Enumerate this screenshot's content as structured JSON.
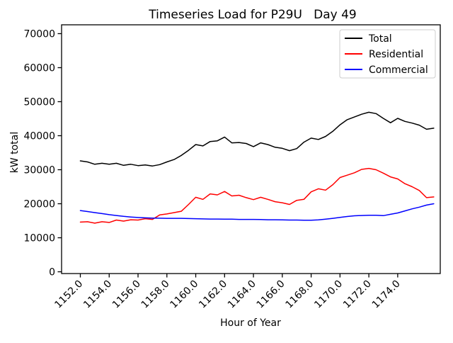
{
  "chart_data": {
    "type": "line",
    "title": "Timeseries Load for P29U   Day 49",
    "xlabel": "Hour of Year",
    "ylabel": "kW total",
    "grid": false,
    "xlim": [
      1150.7,
      1176.95
    ],
    "ylim": [
      -520,
      72600
    ],
    "x_ticks": {
      "values": [
        1152,
        1154,
        1156,
        1158,
        1160,
        1162,
        1164,
        1166,
        1168,
        1170,
        1172,
        1174
      ],
      "labels": [
        "1152.0",
        "1154.0",
        "1156.0",
        "1158.0",
        "1160.0",
        "1162.0",
        "1164.0",
        "1166.0",
        "1168.0",
        "1170.0",
        "1172.0",
        "1174.0"
      ],
      "rotation": -45
    },
    "y_ticks": {
      "values": [
        0,
        10000,
        20000,
        30000,
        40000,
        50000,
        60000,
        70000
      ],
      "labels": [
        "0",
        "10000",
        "20000",
        "30000",
        "40000",
        "50000",
        "60000",
        "70000"
      ]
    },
    "legend": {
      "position": "upper right",
      "entries": [
        "Total",
        "Residential",
        "Commercial"
      ]
    },
    "x": [
      1152.0,
      1152.5,
      1153.0,
      1153.5,
      1154.0,
      1154.5,
      1155.0,
      1155.5,
      1156.0,
      1156.5,
      1157.0,
      1157.5,
      1158.0,
      1158.5,
      1159.0,
      1159.5,
      1160.0,
      1160.5,
      1161.0,
      1161.5,
      1162.0,
      1162.5,
      1163.0,
      1163.5,
      1164.0,
      1164.5,
      1165.0,
      1165.5,
      1166.0,
      1166.5,
      1167.0,
      1167.5,
      1168.0,
      1168.5,
      1169.0,
      1169.5,
      1170.0,
      1170.5,
      1171.0,
      1171.5,
      1172.0,
      1172.5,
      1173.0,
      1173.5,
      1174.0,
      1174.5,
      1175.0,
      1175.5,
      1176.0,
      1176.5
    ],
    "series": [
      {
        "name": "Total",
        "color": "#000000",
        "values": [
          32600,
          32300,
          31600,
          31900,
          31600,
          31900,
          31300,
          31600,
          31200,
          31400,
          31100,
          31500,
          32300,
          33000,
          34200,
          35700,
          37400,
          37000,
          38300,
          38500,
          39600,
          37900,
          38000,
          37700,
          36800,
          37900,
          37400,
          36600,
          36300,
          35600,
          36200,
          38100,
          39300,
          38900,
          39800,
          41300,
          43200,
          44700,
          45500,
          46300,
          46900,
          46500,
          45100,
          43800,
          45100,
          44200,
          43700,
          43100,
          41900,
          42200
        ]
      },
      {
        "name": "Residential",
        "color": "#ff0000",
        "values": [
          14600,
          14700,
          14300,
          14700,
          14500,
          15200,
          14900,
          15300,
          15200,
          15600,
          15400,
          16700,
          17000,
          17400,
          17800,
          19800,
          21900,
          21300,
          22900,
          22600,
          23600,
          22300,
          22500,
          21800,
          21200,
          21900,
          21300,
          20600,
          20300,
          19800,
          21000,
          21300,
          23500,
          24400,
          24000,
          25600,
          27700,
          28400,
          29100,
          30100,
          30400,
          30000,
          29000,
          27900,
          27300,
          25900,
          25000,
          23900,
          21800,
          22000
        ]
      },
      {
        "name": "Commercial",
        "color": "#0000ff",
        "values": [
          18000,
          17700,
          17400,
          17100,
          16800,
          16550,
          16300,
          16100,
          15950,
          15850,
          15800,
          15750,
          15700,
          15700,
          15700,
          15650,
          15600,
          15550,
          15500,
          15500,
          15450,
          15450,
          15400,
          15400,
          15400,
          15350,
          15300,
          15300,
          15250,
          15200,
          15200,
          15150,
          15150,
          15250,
          15450,
          15700,
          16000,
          16250,
          16450,
          16550,
          16600,
          16600,
          16500,
          16900,
          17300,
          17900,
          18500,
          19000,
          19600,
          20000
        ]
      }
    ]
  }
}
